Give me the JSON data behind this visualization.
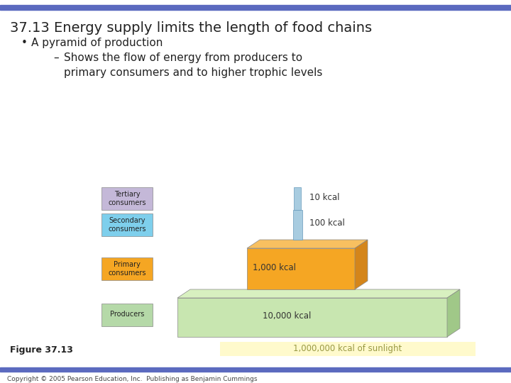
{
  "title": "37.13 Energy supply limits the length of food chains",
  "bullet1": "A pyramid of production",
  "dash1": "Shows the flow of energy from producers to\nprimary consumers and to higher trophic levels",
  "figure_label": "Figure 37.13",
  "sunlight_label": "1,000,000 kcal of sunlight",
  "copyright": "Copyright © 2005 Pearson Education, Inc.  Publishing as Benjamin Cummings",
  "header_bar_color": "#5b6abf",
  "slide_bg": "#ffffff",
  "trophic_levels": [
    {
      "label": "Tertiary\nconsumers",
      "color": "#c4b8d8"
    },
    {
      "label": "Secondary\nconsumers",
      "color": "#7ecfec"
    },
    {
      "label": "Primary\nconsumers",
      "color": "#f5a623"
    },
    {
      "label": "Producers",
      "color": "#b5d9a8"
    }
  ],
  "pyramid_bg": "#c8e6b0",
  "pyramid_bg_top": "#d8f0c0",
  "pyramid_bg_right": "#a0c888",
  "pyramid_bar_color": "#f5a623",
  "pyramid_bar_top": "#f8c060",
  "pyramid_bar_right": "#d4851a",
  "pyramid_thin_color": "#a8cce0",
  "sunlight_bg": "#fffacc",
  "sunlight_text": "#999944",
  "footer_bar_color": "#5b6abf",
  "energy_labels": [
    "10 kcal",
    "100 kcal",
    "1,000 kcal",
    "10,000 kcal"
  ]
}
